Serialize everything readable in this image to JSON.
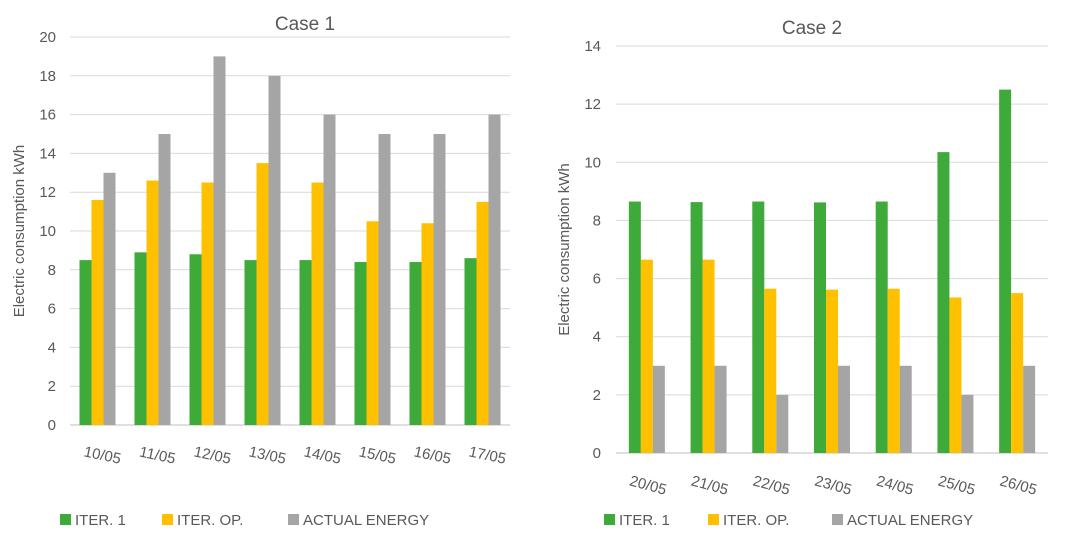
{
  "chart_data": [
    {
      "type": "bar",
      "title": "Case 1",
      "xlabel": "",
      "ylabel": "Electric consumption kWh",
      "ylim": [
        0,
        20
      ],
      "yticks": [
        0,
        2,
        4,
        6,
        8,
        10,
        12,
        14,
        16,
        18,
        20
      ],
      "grid": true,
      "legend_position": "bottom",
      "categories": [
        "10/05",
        "11/05",
        "12/05",
        "13/05",
        "14/05",
        "15/05",
        "16/05",
        "17/05"
      ],
      "series": [
        {
          "name": "ITER. 1",
          "color": "#3DAA3A",
          "values": [
            8.5,
            8.9,
            8.8,
            8.5,
            8.5,
            8.4,
            8.4,
            8.6
          ]
        },
        {
          "name": "ITER. OP.",
          "color": "#FFC000",
          "values": [
            11.6,
            12.6,
            12.5,
            13.5,
            12.5,
            10.5,
            10.4,
            11.5
          ]
        },
        {
          "name": "ACTUAL ENERGY",
          "color": "#A5A5A5",
          "values": [
            13,
            15,
            19,
            18,
            16,
            15,
            15,
            16
          ]
        }
      ]
    },
    {
      "type": "bar",
      "title": "Case 2",
      "xlabel": "",
      "ylabel": "Electric consumption kWh",
      "ylim": [
        0,
        14
      ],
      "yticks": [
        0,
        2,
        4,
        6,
        8,
        10,
        12,
        14
      ],
      "grid": true,
      "legend_position": "bottom",
      "categories": [
        "20/05",
        "21/05",
        "22/05",
        "23/05",
        "24/05",
        "25/05",
        "26/05"
      ],
      "series": [
        {
          "name": "ITER. 1",
          "color": "#3DAA3A",
          "values": [
            8.65,
            8.63,
            8.65,
            8.62,
            8.65,
            10.35,
            12.5
          ]
        },
        {
          "name": "ITER. OP.",
          "color": "#FFC000",
          "values": [
            6.65,
            6.65,
            5.65,
            5.62,
            5.65,
            5.35,
            5.5
          ]
        },
        {
          "name": "ACTUAL ENERGY",
          "color": "#A5A5A5",
          "values": [
            3,
            3,
            2,
            3,
            3,
            2,
            3
          ]
        }
      ]
    }
  ]
}
